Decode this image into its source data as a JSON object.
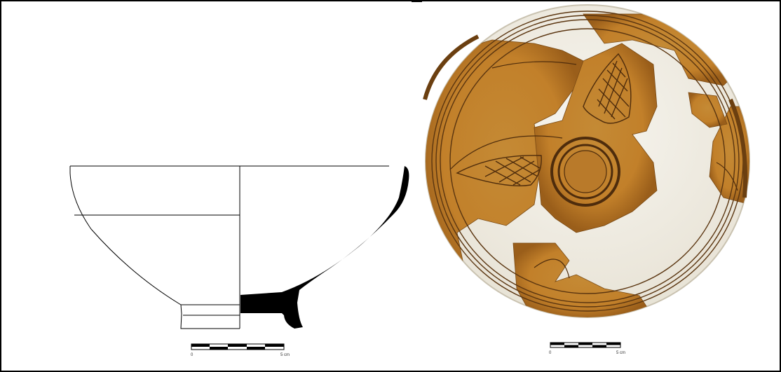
{
  "figure": {
    "left_panel": {
      "kind": "profile-drawing",
      "scale_bar": {
        "start_label": "0",
        "end_label": "5 cm",
        "segments": 5
      }
    },
    "right_panel": {
      "kind": "photograph",
      "scale_bar": {
        "start_label": "0",
        "end_label": "5 cm",
        "segments": 5
      }
    },
    "colors": {
      "glaze": "#c88a2e",
      "glaze_dark": "#9c6218",
      "incision": "#5a3510",
      "plaster": "#f4f1ea",
      "frame": "#000000"
    }
  }
}
